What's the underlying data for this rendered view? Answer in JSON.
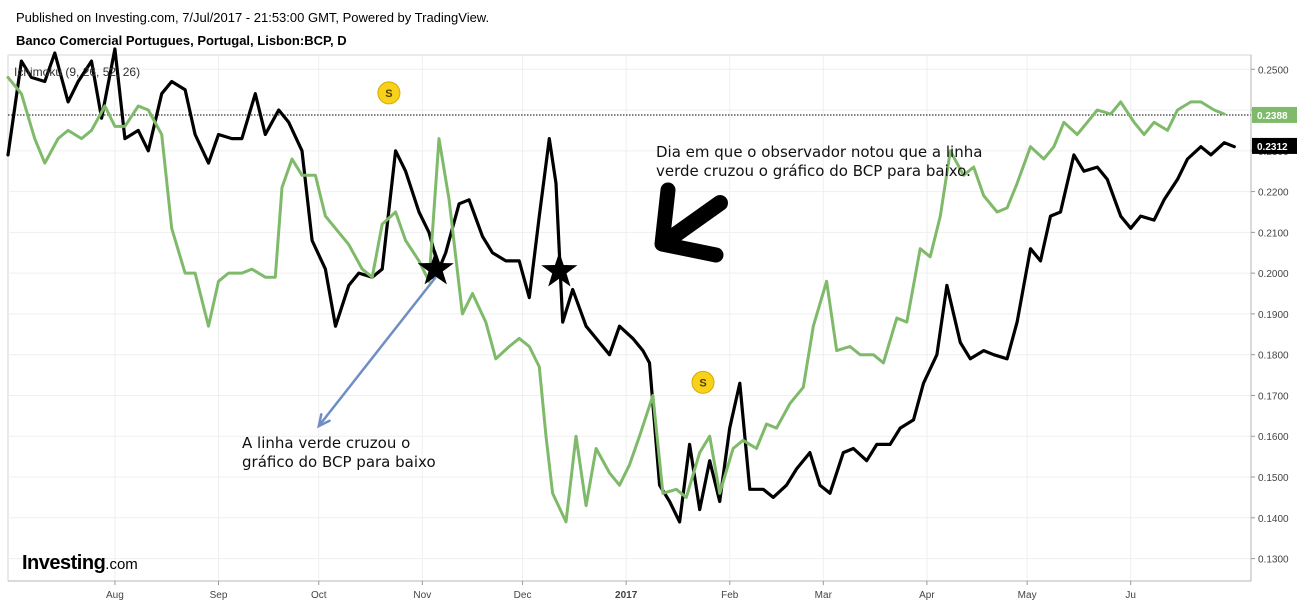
{
  "header": {
    "published": "Published on Investing.com, 7/Jul/2017 - 21:53:00 GMT, Powered by TradingView.",
    "instrument": "Banco Comercial Portugues, Portugal, Lisbon:BCP, D"
  },
  "logo": {
    "brand": "Investing",
    "tld": ".com"
  },
  "annotations": {
    "top": "Dia em que o observador notou que a linha\nverde cruzou o gráfico do BCP para baixo.",
    "bottom": "A linha verde cruzou o\ngráfico do BCP para baixo"
  },
  "chart_data": {
    "type": "line",
    "indicator_label": "Ichimoku (9, 26, 52, 26)",
    "x_ticks": [
      "Aug",
      "Sep",
      "Oct",
      "Nov",
      "Dec",
      "2017",
      "Feb",
      "Mar",
      "Apr",
      "May",
      "Ju"
    ],
    "y_ticks": [
      "0.2500",
      "0.2400",
      "0.2300",
      "0.2200",
      "0.2100",
      "0.2000",
      "0.1900",
      "0.1800",
      "0.1700",
      "0.1600",
      "0.1500",
      "0.1400",
      "0.1300"
    ],
    "ylim": [
      0.1245,
      0.2535
    ],
    "grid": true,
    "reference_line": {
      "value": 0.2388,
      "label": "0.2388",
      "color": "#7fba6a"
    },
    "last_price": {
      "value": 0.2312,
      "label": "0.2312",
      "color": "#000000"
    },
    "markers": [
      {
        "x": "2016-10-22",
        "y": 0.2442,
        "label": "S"
      },
      {
        "x": "2017-01-24",
        "y": 0.1732,
        "label": "S"
      }
    ],
    "stars": [
      {
        "x": "2016-11-05",
        "y": 0.201
      },
      {
        "x": "2016-12-12",
        "y": 0.2005
      }
    ],
    "arrows": [
      {
        "from": [
          "2016-11-05",
          0.199
        ],
        "to": [
          "2016-10-01",
          0.1625
        ],
        "color": "#6f8fc4"
      }
    ],
    "series": [
      {
        "color": "#000000",
        "points": [
          [
            "2016-06-30",
            0.229
          ],
          [
            "2016-07-04",
            0.252
          ],
          [
            "2016-07-07",
            0.248
          ],
          [
            "2016-07-11",
            0.247
          ],
          [
            "2016-07-14",
            0.254
          ],
          [
            "2016-07-18",
            0.242
          ],
          [
            "2016-07-21",
            0.247
          ],
          [
            "2016-07-25",
            0.252
          ],
          [
            "2016-07-28",
            0.238
          ],
          [
            "2016-08-01",
            0.255
          ],
          [
            "2016-08-04",
            0.233
          ],
          [
            "2016-08-08",
            0.235
          ],
          [
            "2016-08-11",
            0.23
          ],
          [
            "2016-08-15",
            0.244
          ],
          [
            "2016-08-18",
            0.247
          ],
          [
            "2016-08-22",
            0.245
          ],
          [
            "2016-08-25",
            0.234
          ],
          [
            "2016-08-29",
            0.227
          ],
          [
            "2016-09-01",
            0.234
          ],
          [
            "2016-09-05",
            0.233
          ],
          [
            "2016-09-08",
            0.233
          ],
          [
            "2016-09-12",
            0.244
          ],
          [
            "2016-09-15",
            0.234
          ],
          [
            "2016-09-19",
            0.24
          ],
          [
            "2016-09-22",
            0.237
          ],
          [
            "2016-09-26",
            0.23
          ],
          [
            "2016-09-29",
            0.208
          ],
          [
            "2016-10-03",
            0.201
          ],
          [
            "2016-10-06",
            0.187
          ],
          [
            "2016-10-10",
            0.197
          ],
          [
            "2016-10-13",
            0.2
          ],
          [
            "2016-10-17",
            0.199
          ],
          [
            "2016-10-20",
            0.201
          ],
          [
            "2016-10-24",
            0.23
          ],
          [
            "2016-10-27",
            0.225
          ],
          [
            "2016-10-31",
            0.215
          ],
          [
            "2016-11-03",
            0.21
          ],
          [
            "2016-11-06",
            0.201
          ],
          [
            "2016-11-08",
            0.205
          ],
          [
            "2016-11-12",
            0.217
          ],
          [
            "2016-11-15",
            0.218
          ],
          [
            "2016-11-19",
            0.209
          ],
          [
            "2016-11-22",
            0.205
          ],
          [
            "2016-11-26",
            0.203
          ],
          [
            "2016-11-30",
            0.203
          ],
          [
            "2016-12-03",
            0.194
          ],
          [
            "2016-12-06",
            0.214
          ],
          [
            "2016-12-09",
            0.233
          ],
          [
            "2016-12-11",
            0.222
          ],
          [
            "2016-12-13",
            0.188
          ],
          [
            "2016-12-16",
            0.196
          ],
          [
            "2016-12-20",
            0.187
          ],
          [
            "2016-12-23",
            0.184
          ],
          [
            "2016-12-27",
            0.18
          ],
          [
            "2016-12-30",
            0.187
          ],
          [
            "2017-01-03",
            0.184
          ],
          [
            "2017-01-06",
            0.181
          ],
          [
            "2017-01-08",
            0.178
          ],
          [
            "2017-01-11",
            0.148
          ],
          [
            "2017-01-14",
            0.144
          ],
          [
            "2017-01-17",
            0.139
          ],
          [
            "2017-01-20",
            0.158
          ],
          [
            "2017-01-23",
            0.142
          ],
          [
            "2017-01-26",
            0.154
          ],
          [
            "2017-01-29",
            0.144
          ],
          [
            "2017-02-01",
            0.162
          ],
          [
            "2017-02-04",
            0.173
          ],
          [
            "2017-02-07",
            0.147
          ],
          [
            "2017-02-11",
            0.147
          ],
          [
            "2017-02-14",
            0.145
          ],
          [
            "2017-02-18",
            0.148
          ],
          [
            "2017-02-21",
            0.152
          ],
          [
            "2017-02-25",
            0.156
          ],
          [
            "2017-02-28",
            0.148
          ],
          [
            "2017-03-03",
            0.146
          ],
          [
            "2017-03-07",
            0.156
          ],
          [
            "2017-03-10",
            0.157
          ],
          [
            "2017-03-14",
            0.154
          ],
          [
            "2017-03-17",
            0.158
          ],
          [
            "2017-03-21",
            0.158
          ],
          [
            "2017-03-24",
            0.162
          ],
          [
            "2017-03-28",
            0.164
          ],
          [
            "2017-03-31",
            0.173
          ],
          [
            "2017-04-04",
            0.18
          ],
          [
            "2017-04-07",
            0.197
          ],
          [
            "2017-04-11",
            0.183
          ],
          [
            "2017-04-14",
            0.179
          ],
          [
            "2017-04-18",
            0.181
          ],
          [
            "2017-04-21",
            0.18
          ],
          [
            "2017-04-25",
            0.179
          ],
          [
            "2017-04-28",
            0.188
          ],
          [
            "2017-05-02",
            0.206
          ],
          [
            "2017-05-05",
            0.203
          ],
          [
            "2017-05-08",
            0.214
          ],
          [
            "2017-05-11",
            0.215
          ],
          [
            "2017-05-15",
            0.229
          ],
          [
            "2017-05-18",
            0.225
          ],
          [
            "2017-05-22",
            0.226
          ],
          [
            "2017-05-25",
            0.223
          ],
          [
            "2017-05-29",
            0.214
          ],
          [
            "2017-06-01",
            0.211
          ],
          [
            "2017-06-04",
            0.214
          ],
          [
            "2017-06-08",
            0.213
          ],
          [
            "2017-06-11",
            0.218
          ],
          [
            "2017-06-15",
            0.223
          ],
          [
            "2017-06-18",
            0.228
          ],
          [
            "2017-06-22",
            0.231
          ],
          [
            "2017-06-25",
            0.229
          ],
          [
            "2017-06-29",
            0.232
          ],
          [
            "2017-07-02",
            0.231
          ]
        ]
      },
      {
        "color": "#7fba6a",
        "points": [
          [
            "2016-06-30",
            0.248
          ],
          [
            "2016-07-04",
            0.244
          ],
          [
            "2016-07-08",
            0.233
          ],
          [
            "2016-07-11",
            0.227
          ],
          [
            "2016-07-15",
            0.233
          ],
          [
            "2016-07-18",
            0.235
          ],
          [
            "2016-07-22",
            0.233
          ],
          [
            "2016-07-25",
            0.235
          ],
          [
            "2016-07-29",
            0.241
          ],
          [
            "2016-08-01",
            0.236
          ],
          [
            "2016-08-04",
            0.236
          ],
          [
            "2016-08-08",
            0.241
          ],
          [
            "2016-08-11",
            0.24
          ],
          [
            "2016-08-15",
            0.234
          ],
          [
            "2016-08-18",
            0.211
          ],
          [
            "2016-08-22",
            0.2
          ],
          [
            "2016-08-25",
            0.2
          ],
          [
            "2016-08-29",
            0.187
          ],
          [
            "2016-09-01",
            0.198
          ],
          [
            "2016-09-04",
            0.2
          ],
          [
            "2016-09-08",
            0.2
          ],
          [
            "2016-09-11",
            0.201
          ],
          [
            "2016-09-15",
            0.199
          ],
          [
            "2016-09-18",
            0.199
          ],
          [
            "2016-09-20",
            0.221
          ],
          [
            "2016-09-23",
            0.228
          ],
          [
            "2016-09-26",
            0.224
          ],
          [
            "2016-09-30",
            0.224
          ],
          [
            "2016-10-03",
            0.214
          ],
          [
            "2016-10-07",
            0.21
          ],
          [
            "2016-10-10",
            0.207
          ],
          [
            "2016-10-14",
            0.201
          ],
          [
            "2016-10-17",
            0.199
          ],
          [
            "2016-10-20",
            0.212
          ],
          [
            "2016-10-24",
            0.215
          ],
          [
            "2016-10-27",
            0.208
          ],
          [
            "2016-10-31",
            0.203
          ],
          [
            "2016-11-03",
            0.198
          ],
          [
            "2016-11-06",
            0.233
          ],
          [
            "2016-11-09",
            0.218
          ],
          [
            "2016-11-13",
            0.19
          ],
          [
            "2016-11-16",
            0.195
          ],
          [
            "2016-11-20",
            0.188
          ],
          [
            "2016-11-23",
            0.179
          ],
          [
            "2016-11-27",
            0.182
          ],
          [
            "2016-11-30",
            0.184
          ],
          [
            "2016-12-03",
            0.182
          ],
          [
            "2016-12-06",
            0.177
          ],
          [
            "2016-12-08",
            0.16
          ],
          [
            "2016-12-10",
            0.146
          ],
          [
            "2016-12-14",
            0.139
          ],
          [
            "2016-12-17",
            0.16
          ],
          [
            "2016-12-20",
            0.143
          ],
          [
            "2016-12-23",
            0.157
          ],
          [
            "2016-12-27",
            0.151
          ],
          [
            "2016-12-30",
            0.148
          ],
          [
            "2017-01-02",
            0.153
          ],
          [
            "2017-01-05",
            0.16
          ],
          [
            "2017-01-09",
            0.17
          ],
          [
            "2017-01-12",
            0.146
          ],
          [
            "2017-01-16",
            0.147
          ],
          [
            "2017-01-19",
            0.145
          ],
          [
            "2017-01-23",
            0.156
          ],
          [
            "2017-01-26",
            0.16
          ],
          [
            "2017-01-29",
            0.146
          ],
          [
            "2017-02-02",
            0.157
          ],
          [
            "2017-02-05",
            0.159
          ],
          [
            "2017-02-09",
            0.157
          ],
          [
            "2017-02-12",
            0.163
          ],
          [
            "2017-02-15",
            0.162
          ],
          [
            "2017-02-19",
            0.168
          ],
          [
            "2017-02-23",
            0.172
          ],
          [
            "2017-02-26",
            0.187
          ],
          [
            "2017-03-02",
            0.198
          ],
          [
            "2017-03-05",
            0.181
          ],
          [
            "2017-03-09",
            0.182
          ],
          [
            "2017-03-12",
            0.18
          ],
          [
            "2017-03-16",
            0.18
          ],
          [
            "2017-03-19",
            0.178
          ],
          [
            "2017-03-23",
            0.189
          ],
          [
            "2017-03-26",
            0.188
          ],
          [
            "2017-03-30",
            0.206
          ],
          [
            "2017-04-02",
            0.204
          ],
          [
            "2017-04-05",
            0.214
          ],
          [
            "2017-04-08",
            0.23
          ],
          [
            "2017-04-12",
            0.224
          ],
          [
            "2017-04-15",
            0.226
          ],
          [
            "2017-04-18",
            0.219
          ],
          [
            "2017-04-22",
            0.215
          ],
          [
            "2017-04-25",
            0.216
          ],
          [
            "2017-04-28",
            0.222
          ],
          [
            "2017-05-02",
            0.231
          ],
          [
            "2017-05-06",
            0.228
          ],
          [
            "2017-05-09",
            0.231
          ],
          [
            "2017-05-12",
            0.237
          ],
          [
            "2017-05-16",
            0.234
          ],
          [
            "2017-05-19",
            0.237
          ],
          [
            "2017-05-22",
            0.24
          ],
          [
            "2017-05-26",
            0.239
          ],
          [
            "2017-05-29",
            0.242
          ],
          [
            "2017-06-02",
            0.237
          ],
          [
            "2017-06-05",
            0.234
          ],
          [
            "2017-06-08",
            0.237
          ],
          [
            "2017-06-12",
            0.235
          ],
          [
            "2017-06-15",
            0.24
          ],
          [
            "2017-06-19",
            0.242
          ],
          [
            "2017-06-22",
            0.242
          ],
          [
            "2017-06-26",
            0.24
          ],
          [
            "2017-06-29",
            0.239
          ]
        ]
      }
    ]
  }
}
